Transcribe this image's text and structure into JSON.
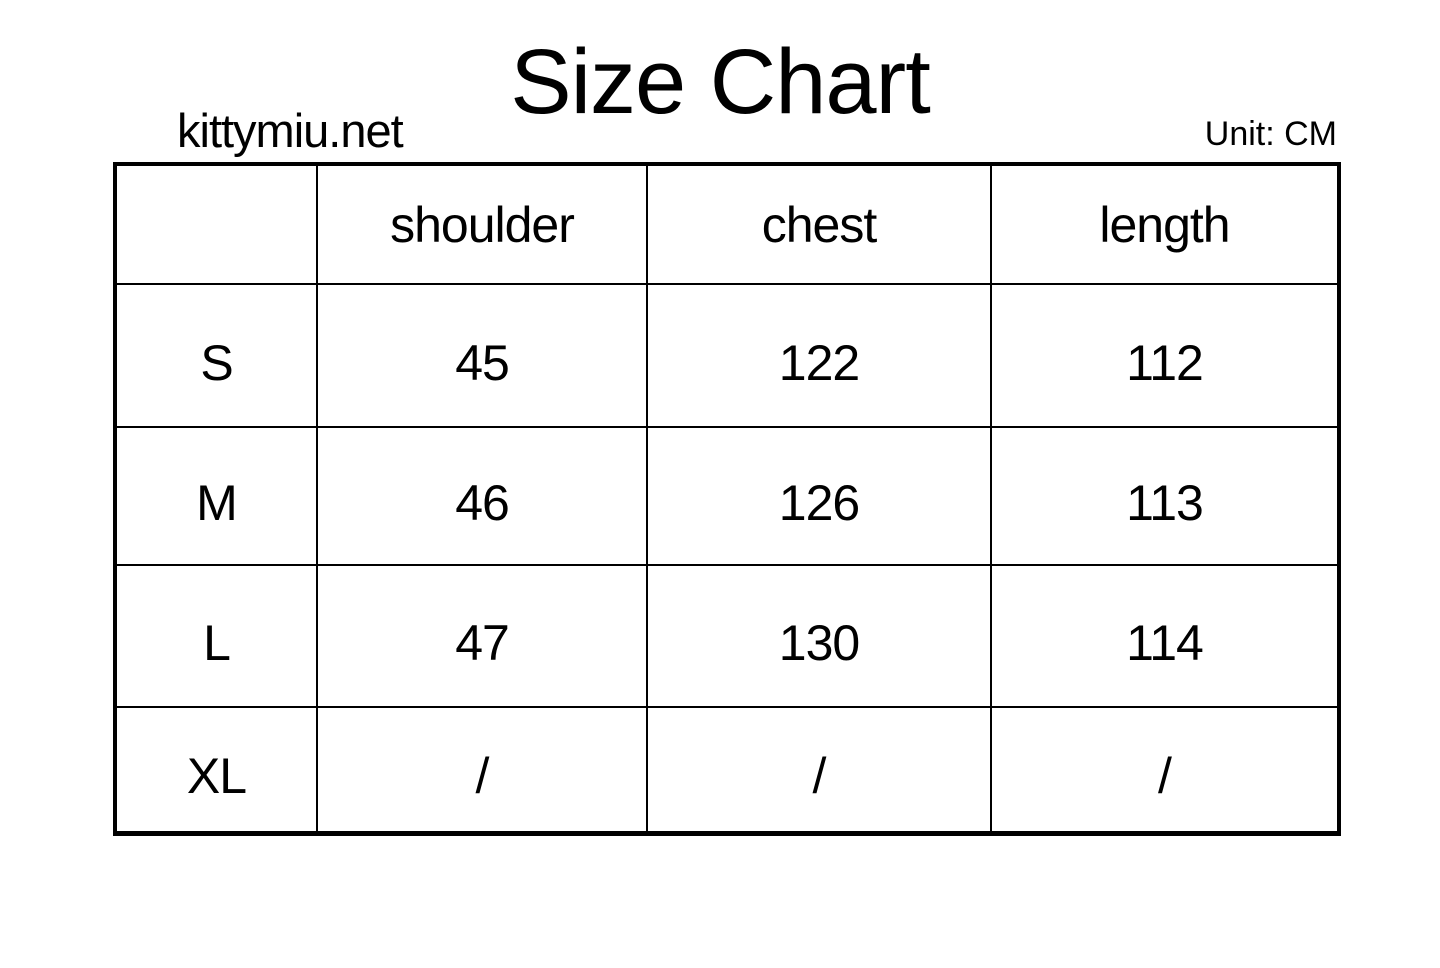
{
  "header": {
    "title": "Size Chart",
    "site": "kittymiu.net",
    "unit_label": "Unit: CM"
  },
  "chart_data": {
    "type": "table",
    "title": "Size Chart",
    "unit": "CM",
    "columns": [
      "",
      "shoulder",
      "chest",
      "length"
    ],
    "rows": [
      [
        "S",
        "45",
        "122",
        "112"
      ],
      [
        "M",
        "46",
        "126",
        "113"
      ],
      [
        "L",
        "47",
        "130",
        "114"
      ],
      [
        "XL",
        "/",
        "/",
        "/"
      ]
    ]
  }
}
